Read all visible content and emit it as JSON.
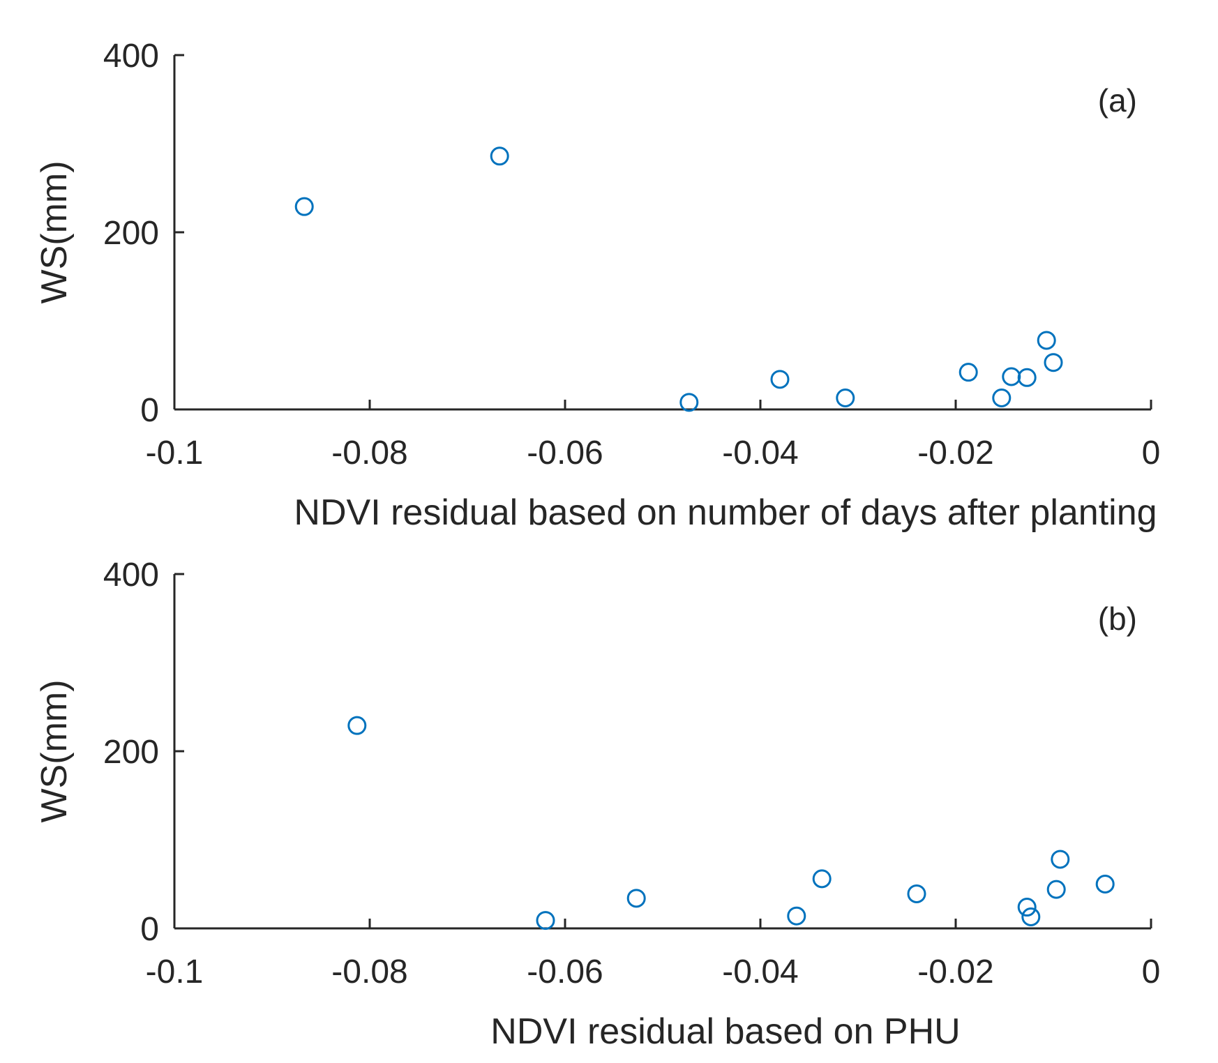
{
  "chart_data": [
    {
      "type": "scatter",
      "panel_label": "(a)",
      "xlabel": "NDVI residual based on number of days after planting",
      "ylabel": "WS(mm)",
      "xlim": [
        -0.1,
        0
      ],
      "ylim": [
        0,
        400
      ],
      "xticks": [
        -0.1,
        -0.08,
        -0.06,
        -0.04,
        -0.02,
        0
      ],
      "xtick_labels": [
        "-0.1",
        "-0.08",
        "-0.06",
        "-0.04",
        "-0.02",
        "0"
      ],
      "yticks": [
        0,
        200,
        400
      ],
      "ytick_labels": [
        "0",
        "200",
        "400"
      ],
      "grid": false,
      "marker_color": "#0072BD",
      "series": [
        {
          "name": "WS",
          "x": [
            -0.0867,
            -0.0667,
            -0.0473,
            -0.038,
            -0.0313,
            -0.0187,
            -0.0153,
            -0.0143,
            -0.0127,
            -0.0107,
            -0.01
          ],
          "y": [
            229,
            286,
            8,
            34,
            13,
            42,
            13,
            37,
            36,
            78,
            53
          ]
        }
      ]
    },
    {
      "type": "scatter",
      "panel_label": "(b)",
      "xlabel": "NDVI residual based on PHU",
      "ylabel": "WS(mm)",
      "xlim": [
        -0.1,
        0
      ],
      "ylim": [
        0,
        400
      ],
      "xticks": [
        -0.1,
        -0.08,
        -0.06,
        -0.04,
        -0.02,
        0
      ],
      "xtick_labels": [
        "-0.1",
        "-0.08",
        "-0.06",
        "-0.04",
        "-0.02",
        "0"
      ],
      "yticks": [
        0,
        200,
        400
      ],
      "ytick_labels": [
        "0",
        "200",
        "400"
      ],
      "grid": false,
      "marker_color": "#0072BD",
      "series": [
        {
          "name": "WS",
          "x": [
            -0.0813,
            -0.062,
            -0.0527,
            -0.0363,
            -0.0337,
            -0.024,
            -0.0127,
            -0.0123,
            -0.0097,
            -0.0093,
            -0.0047
          ],
          "y": [
            229,
            9,
            34,
            14,
            56,
            39,
            24,
            13,
            44,
            78,
            50
          ]
        }
      ]
    }
  ]
}
